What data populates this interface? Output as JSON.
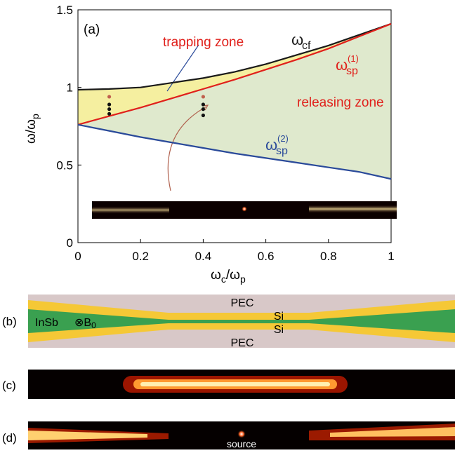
{
  "chart_data": {
    "type": "line",
    "panel_label": "(a)",
    "x": [
      0,
      0.1,
      0.2,
      0.3,
      0.4,
      0.5,
      0.6,
      0.7,
      0.8,
      0.9,
      1
    ],
    "series": [
      {
        "label": [
          "ω",
          "cf"
        ],
        "color": "#1a1a1a",
        "values": [
          0.985,
          0.99,
          1.0,
          1.03,
          1.06,
          1.1,
          1.15,
          1.21,
          1.27,
          1.34,
          1.41
        ]
      },
      {
        "label": [
          "ω",
          "sp",
          "(1)"
        ],
        "color": "#e0201b",
        "values": [
          0.76,
          0.815,
          0.87,
          0.93,
          0.99,
          1.05,
          1.115,
          1.18,
          1.25,
          1.33,
          1.41
        ]
      },
      {
        "label": [
          "ω",
          "sp",
          "(2)"
        ],
        "color": "#2a4a9a",
        "values": [
          0.76,
          0.72,
          0.68,
          0.645,
          0.61,
          0.575,
          0.545,
          0.515,
          0.485,
          0.455,
          0.41
        ]
      }
    ],
    "zone_colors": [
      "#f5efa0",
      "#dfe9cd"
    ],
    "markers": [
      {
        "x": 0.1,
        "y": 0.94,
        "color": "#c0604d"
      },
      {
        "x": 0.1,
        "y": 0.89,
        "color": "#111111"
      },
      {
        "x": 0.1,
        "y": 0.86,
        "color": "#111111"
      },
      {
        "x": 0.1,
        "y": 0.83,
        "color": "#111111"
      },
      {
        "x": 0.4,
        "y": 0.94,
        "color": "#c0604d"
      },
      {
        "x": 0.4,
        "y": 0.89,
        "color": "#111111"
      },
      {
        "x": 0.4,
        "y": 0.86,
        "color": "#111111"
      },
      {
        "x": 0.4,
        "y": 0.82,
        "color": "#111111"
      }
    ],
    "annotations": [
      "trapping zone",
      "releasing zone"
    ],
    "xlabel": [
      "ω",
      "c",
      "/ω",
      "p"
    ],
    "ylabel": [
      "ω/ω",
      "p"
    ],
    "xlim": [
      0,
      1
    ],
    "ylim": [
      0,
      1.5
    ],
    "xticks": [
      0,
      0.2,
      0.4,
      0.6,
      0.8,
      1
    ],
    "yticks": [
      0,
      0.5,
      1,
      1.5
    ]
  },
  "panel_b": {
    "label": "(b)",
    "pec_top": "PEC",
    "si_top": "Si",
    "si_bottom": "Si",
    "pec_bottom": "PEC",
    "material": "InSb",
    "field": "⊗B",
    "field_sub": "0"
  },
  "panel_c": {
    "label": "(c)"
  },
  "panel_d": {
    "label": "(d)",
    "source": "source"
  }
}
